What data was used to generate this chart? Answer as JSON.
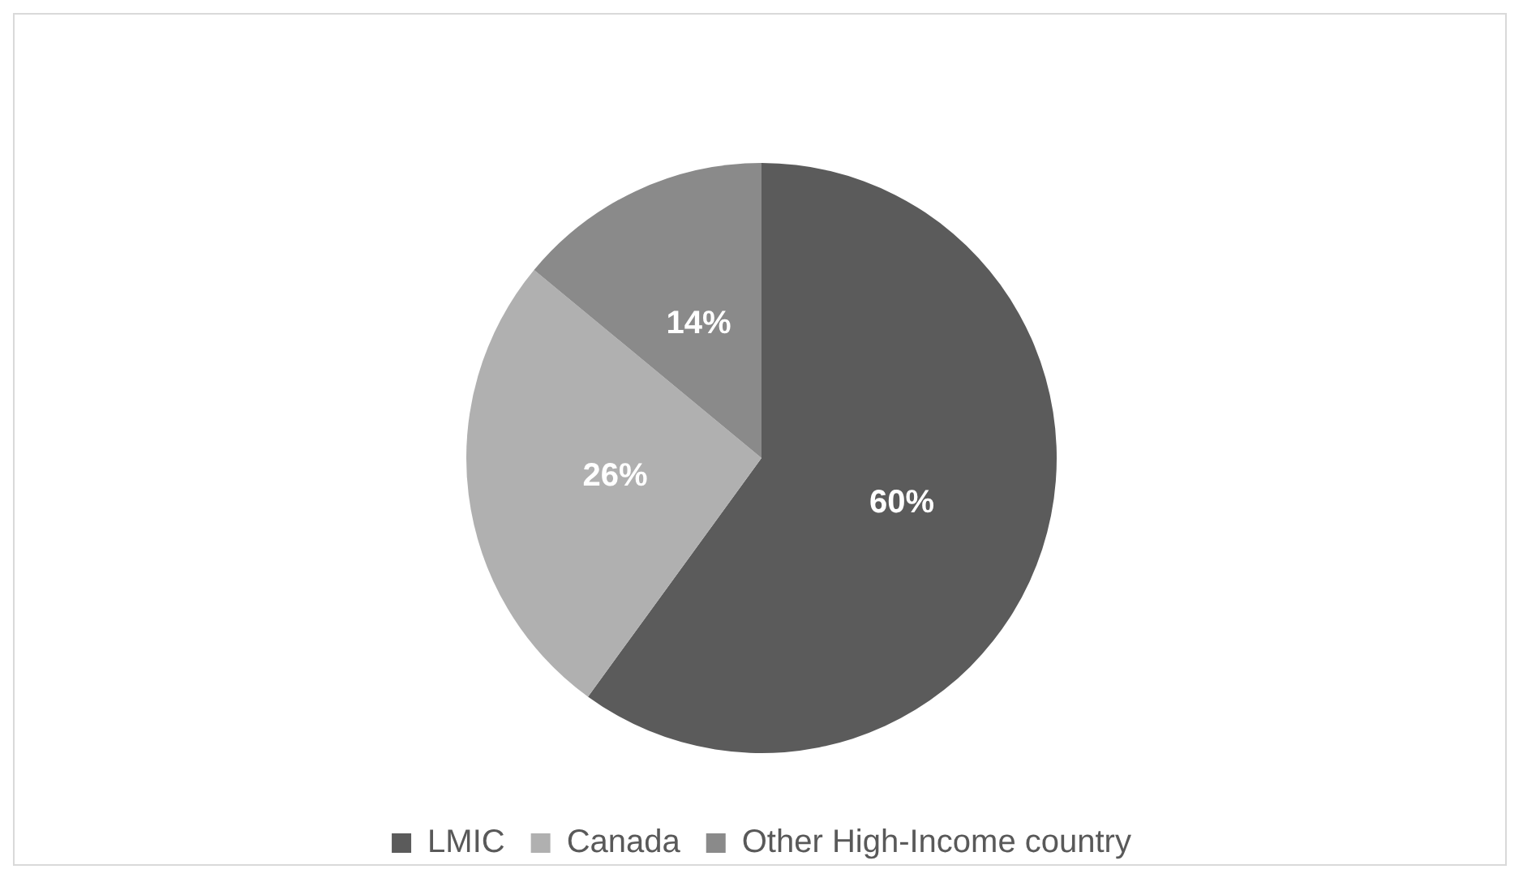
{
  "chart_data": {
    "type": "pie",
    "categories": [
      "LMIC",
      "Canada",
      "Other High-Income country"
    ],
    "values": [
      60,
      26,
      14
    ],
    "colors": [
      "#5b5b5b",
      "#b0b0b0",
      "#8a8a8a"
    ],
    "value_labels": [
      "60%",
      "26%",
      "14%"
    ],
    "legend": "bottom"
  }
}
